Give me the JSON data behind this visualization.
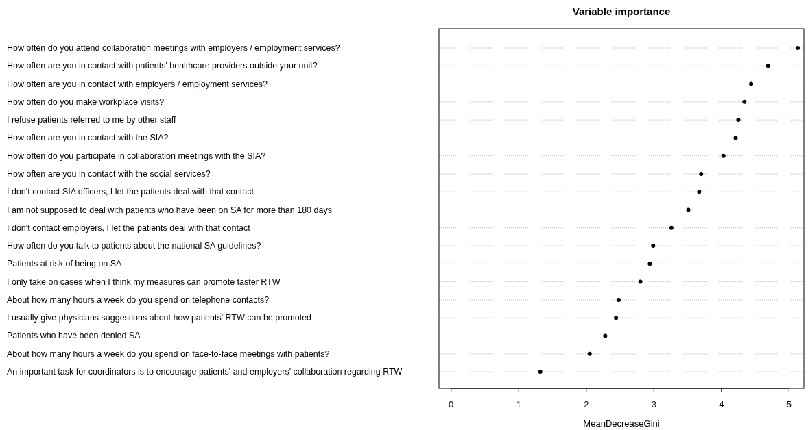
{
  "chart_data": {
    "type": "scatter",
    "orientation": "horizontal",
    "title": "Variable importance",
    "xlabel": "MeanDecreaseGini",
    "categories": [
      "How often do you attend collaboration meetings with employers / employment services?",
      "How often are you in contact with patients' healthcare providers outside your unit?",
      "How often are you in contact with employers / employment services?",
      "How often do you make workplace visits?",
      "I refuse patients referred to me by other staff",
      "How often are you in contact with the SIA?",
      "How often do you participate in collaboration meetings with the SIA?",
      "How often are you in contact with the social services?",
      "I don't contact SIA officers, I let the patients deal with that contact",
      "I am not supposed to deal with patients who have been on SA for more than 180 days",
      "I don't contact employers, I let the patients deal with that contact",
      "How often do you talk to patients about the national SA guidelines?",
      "Patients at risk of being on SA",
      "I only take on cases when I think my measures can promote faster RTW",
      "About how many hours a week do you spend on telephone contacts?",
      "I usually give physicians suggestions about how patients' RTW can be promoted",
      "Patients who have been denied SA",
      "About how many hours a week do you spend on face-to-face meetings with patients?",
      "An important task for coordinators is to encourage patients' and employers' collaboration regarding RTW"
    ],
    "values": [
      5.13,
      4.69,
      4.44,
      4.34,
      4.25,
      4.21,
      4.03,
      3.7,
      3.67,
      3.51,
      3.26,
      2.99,
      2.94,
      2.8,
      2.48,
      2.44,
      2.28,
      2.05,
      1.32
    ],
    "color": "#000000",
    "marker": "circle",
    "grid": "y",
    "xlim": [
      -0.18,
      5.22
    ],
    "xticks": [
      0,
      1,
      2,
      3,
      4,
      5
    ]
  }
}
